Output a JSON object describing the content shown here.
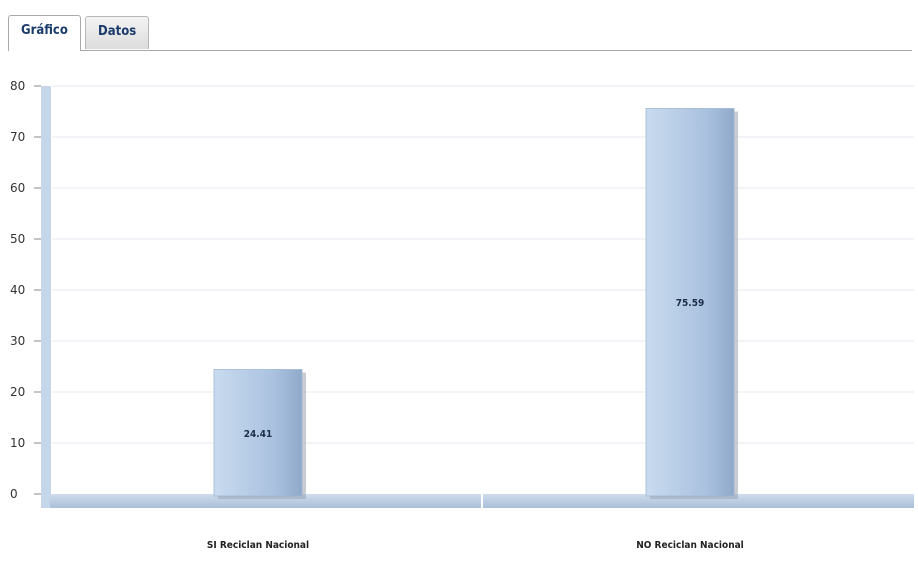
{
  "tabs": [
    {
      "label": "Gráfico",
      "active": true
    },
    {
      "label": "Datos",
      "active": false
    }
  ],
  "chart_data": {
    "type": "bar",
    "categories": [
      "SI Reciclan Nacional",
      "NO Reciclan Nacional"
    ],
    "values": [
      24.41,
      75.59
    ],
    "value_labels": [
      "24.41",
      "75.59"
    ],
    "title": "",
    "xlabel": "",
    "ylabel": "",
    "ylim": [
      0,
      80
    ],
    "yticks": [
      0,
      10,
      20,
      30,
      40,
      50,
      60,
      70,
      80
    ],
    "grid": true,
    "bar_color": "#b4cbe6"
  }
}
